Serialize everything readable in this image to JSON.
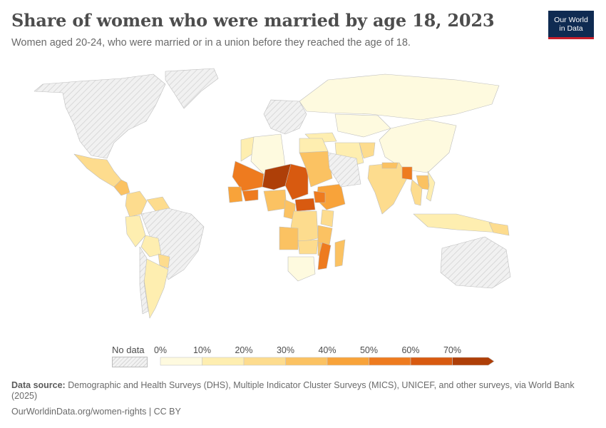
{
  "title": "Share of women who were married by age 18, 2023",
  "subtitle": "Women aged 20-24, who were married or in a union before they reached the age of 18.",
  "logo": {
    "line1": "Our World",
    "line2": "in Data"
  },
  "legend": {
    "no_data_label": "No data",
    "ticks": [
      "0%",
      "10%",
      "20%",
      "30%",
      "40%",
      "50%",
      "60%",
      "70%"
    ],
    "colors": [
      "#fefadf",
      "#feeeb0",
      "#fddc8e",
      "#fbc262",
      "#f8a33a",
      "#ee7b1f",
      "#d85a10",
      "#ae3f08"
    ]
  },
  "no_data_color": "#e9e9e9",
  "chart_data": {
    "type": "choropleth",
    "metric": "Share of women aged 20-24 married before age 18 (%)",
    "year": 2023,
    "scale_bins": [
      0,
      10,
      20,
      30,
      40,
      50,
      60,
      70
    ],
    "countries": [
      {
        "name": "Niger",
        "value": 76
      },
      {
        "name": "Chad",
        "value": 61
      },
      {
        "name": "Mali",
        "value": 54
      },
      {
        "name": "Bangladesh",
        "value": 51
      },
      {
        "name": "Mozambique",
        "value": 53
      },
      {
        "name": "Burkina Faso",
        "value": 52
      },
      {
        "name": "South Sudan",
        "value": 52
      },
      {
        "name": "Central African Republic",
        "value": 61
      },
      {
        "name": "Guinea",
        "value": 47
      },
      {
        "name": "Ethiopia",
        "value": 40
      },
      {
        "name": "Madagascar",
        "value": 39
      },
      {
        "name": "Nigeria",
        "value": 30
      },
      {
        "name": "Democratic Republic of Congo",
        "value": 29
      },
      {
        "name": "Angola",
        "value": 30
      },
      {
        "name": "Sudan",
        "value": 34
      },
      {
        "name": "Malawi",
        "value": 38
      },
      {
        "name": "Zambia",
        "value": 29
      },
      {
        "name": "Tanzania",
        "value": 31
      },
      {
        "name": "India",
        "value": 23
      },
      {
        "name": "Nepal",
        "value": 33
      },
      {
        "name": "Afghanistan",
        "value": 28
      },
      {
        "name": "Laos",
        "value": 32
      },
      {
        "name": "Guyana",
        "value": 28
      },
      {
        "name": "Nicaragua",
        "value": 35
      },
      {
        "name": "Mexico",
        "value": 21
      },
      {
        "name": "Colombia",
        "value": 23
      },
      {
        "name": "Peru",
        "value": 15
      },
      {
        "name": "Bolivia",
        "value": 19
      },
      {
        "name": "Paraguay",
        "value": 22
      },
      {
        "name": "Iran",
        "value": 17
      },
      {
        "name": "Kenya",
        "value": 22
      },
      {
        "name": "Indonesia",
        "value": 11
      },
      {
        "name": "Papua New Guinea",
        "value": 27
      },
      {
        "name": "Cameroon",
        "value": 30
      },
      {
        "name": "Egypt",
        "value": 17
      },
      {
        "name": "Algeria",
        "value": 4
      },
      {
        "name": "Russia",
        "value": 6
      },
      {
        "name": "China",
        "value": 3
      },
      {
        "name": "Kazakhstan",
        "value": 7
      },
      {
        "name": "Turkey",
        "value": 15
      },
      {
        "name": "South Africa",
        "value": 4
      },
      {
        "name": "Argentina",
        "value": 16
      },
      {
        "name": "Morocco",
        "value": 14
      },
      {
        "name": "Thailand",
        "value": 20
      },
      {
        "name": "Vietnam",
        "value": 15
      }
    ]
  },
  "footer": {
    "source_label": "Data source:",
    "source_text": "Demographic and Health Surveys (DHS), Multiple Indicator Cluster Surveys (MICS), UNICEF, and other surveys, via World Bank (2025)",
    "url": "OurWorldinData.org/women-rights",
    "license": "CC BY"
  }
}
